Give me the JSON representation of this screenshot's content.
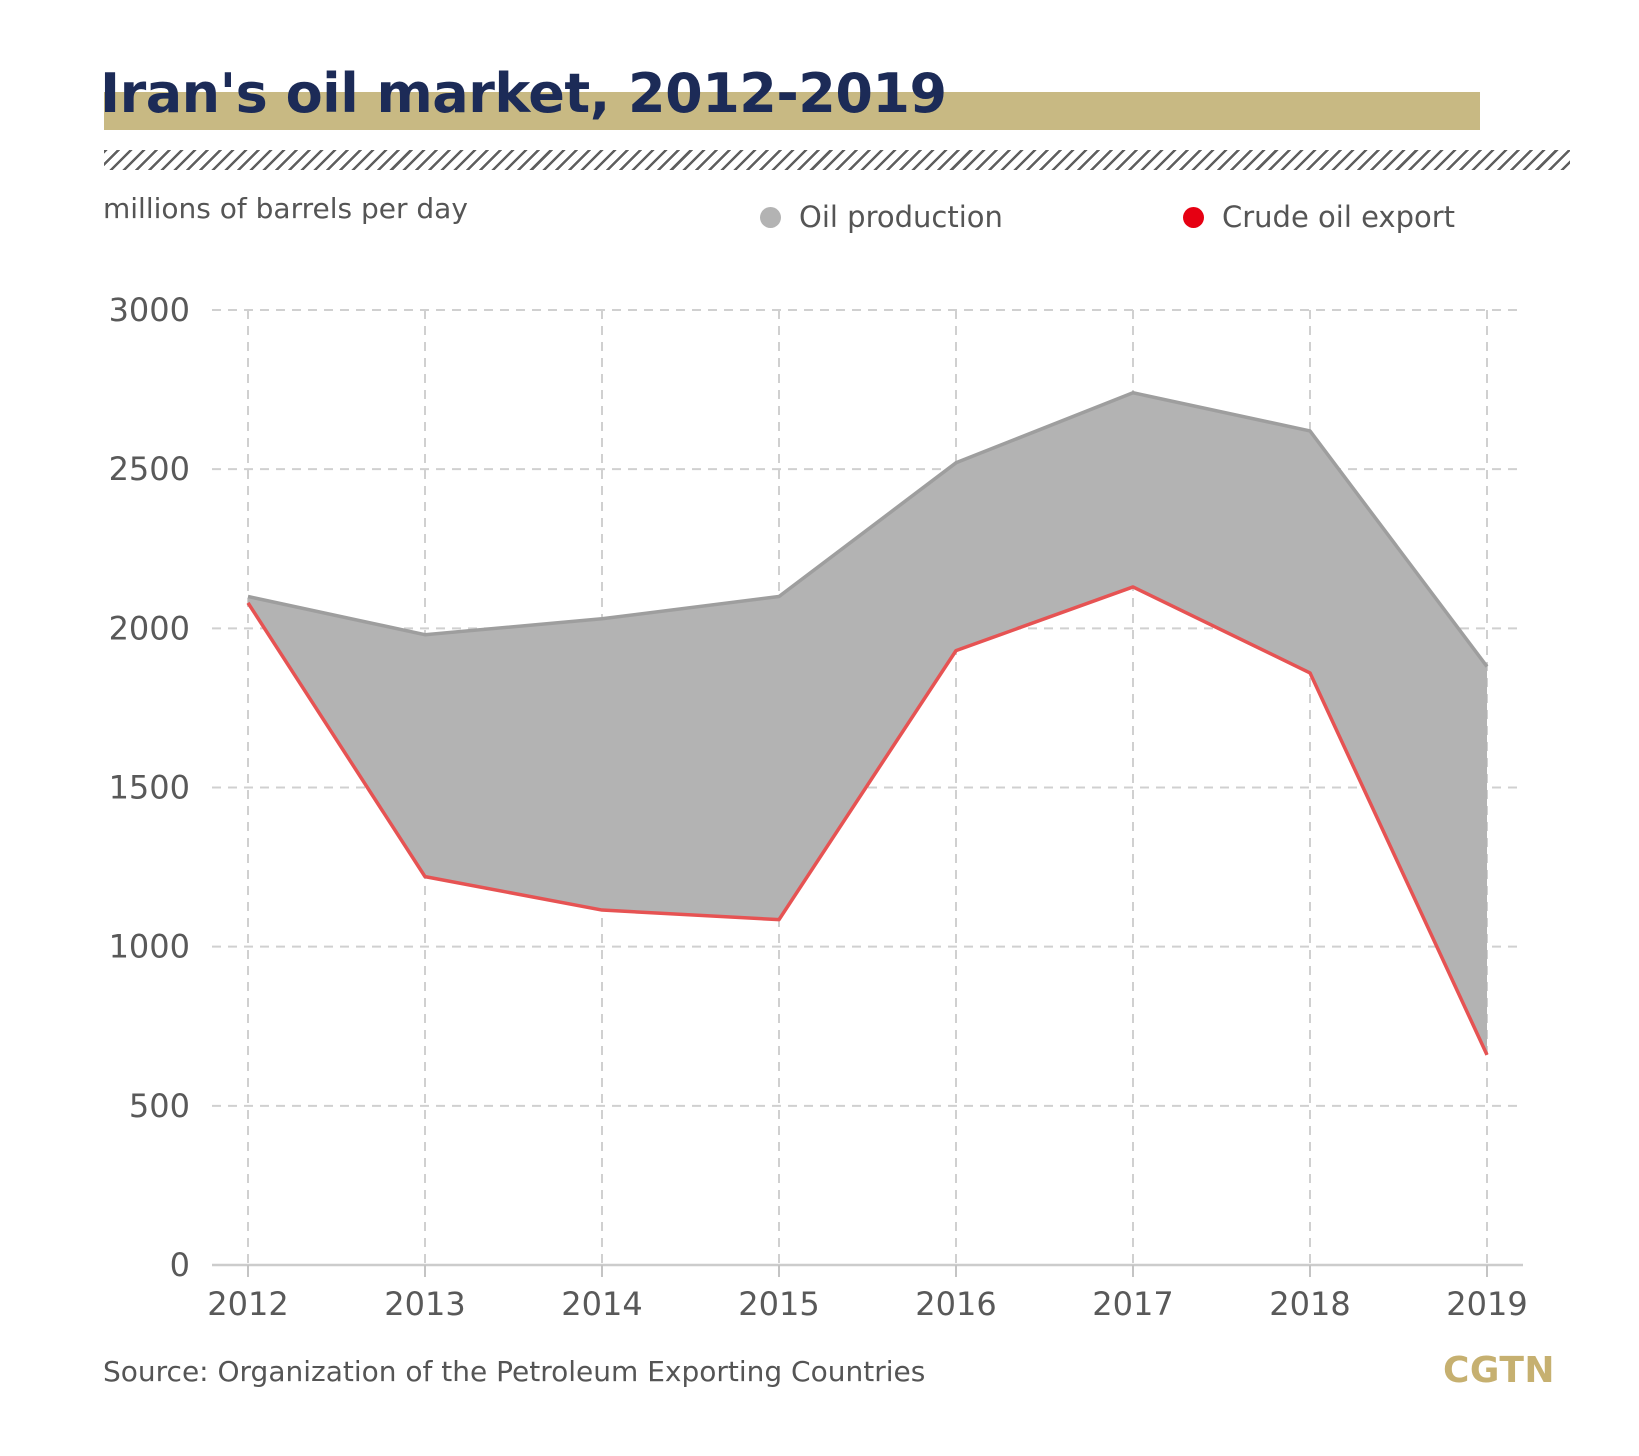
{
  "header": {
    "title": "Iran's oil market, 2012-2019",
    "unit_label": "millions of barrels per day"
  },
  "legend": [
    {
      "label": "Oil production",
      "color": "#b3b3b3"
    },
    {
      "label": "Crude oil export",
      "color": "#e60012"
    }
  ],
  "footer": {
    "source": "Source: Organization of the Petroleum Exporting Countries",
    "logo": "CGTN"
  },
  "chart_data": {
    "type": "area",
    "x": [
      "2012",
      "2013",
      "2014",
      "2015",
      "2016",
      "2017",
      "2018",
      "2019"
    ],
    "y_ticks": [
      "0",
      "500",
      "1000",
      "1500",
      "2000",
      "2500",
      "3000"
    ],
    "ylim": [
      0,
      3000
    ],
    "grid": true,
    "legend_position": "top-right",
    "series": [
      {
        "name": "Oil production",
        "values": [
          2100,
          1980,
          2030,
          2100,
          2520,
          2740,
          2620,
          1880
        ],
        "color": "#9e9e9e",
        "fill": "#b3b3b3"
      },
      {
        "name": "Crude oil export",
        "values": [
          2080,
          1220,
          1115,
          1085,
          1930,
          2130,
          1860,
          660
        ],
        "color": "#e65353"
      }
    ]
  }
}
